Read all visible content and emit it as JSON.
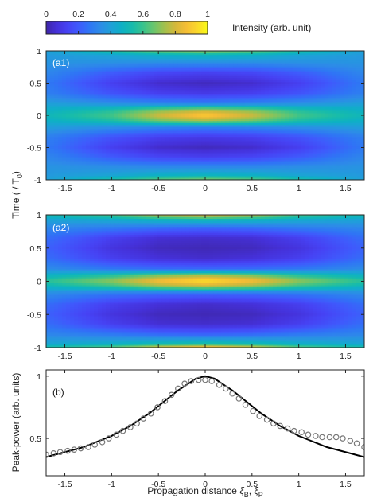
{
  "colorbar": {
    "ticks": [
      "0",
      "0.2",
      "0.4",
      "0.6",
      "0.8",
      "1"
    ],
    "label": "Intensity (arb. unit)"
  },
  "colors": {
    "cmap": [
      "#3e26a8",
      "#4531d9",
      "#4643f4",
      "#3f5afc",
      "#2f75f5",
      "#2d8be8",
      "#1fa0d8",
      "#0db0c5",
      "#16bbac",
      "#38c38d",
      "#6bc56c",
      "#a2c04d",
      "#d4b83a",
      "#f5bd35",
      "#fad62b",
      "#f9fb15"
    ],
    "line": "#000000",
    "marker": "#777777"
  },
  "heatmaps": {
    "ylabel_main": "Time  ( / T",
    "ylabel_sub": "0",
    "ylabel_tail": ")"
  },
  "chart_data": [
    {
      "type": "heatmap",
      "panel": "(a1)",
      "xlim": [
        -1.7,
        1.7
      ],
      "ylim": [
        -1,
        1
      ],
      "xticks": [
        -1.5,
        -1,
        -0.5,
        0,
        0.5,
        1,
        1.5
      ],
      "yticks": [
        -1,
        -0.5,
        0,
        0.5,
        1
      ],
      "clim": [
        0,
        1
      ],
      "rows_t": [
        1.0,
        0.94,
        0.8,
        0.65,
        0.5,
        0.34,
        0.18,
        0.08,
        0.0,
        -0.08,
        -0.18,
        -0.34,
        -0.5,
        -0.65,
        -0.8,
        -0.94,
        -1.0
      ],
      "cols_x": [
        -1.7,
        -1.0,
        -0.5,
        0.0,
        0.5,
        1.0,
        1.7
      ],
      "intensity": [
        [
          0.4,
          0.55,
          0.65,
          0.7,
          0.65,
          0.55,
          0.4
        ],
        [
          0.38,
          0.42,
          0.48,
          0.5,
          0.48,
          0.42,
          0.38
        ],
        [
          0.36,
          0.34,
          0.32,
          0.32,
          0.32,
          0.34,
          0.36
        ],
        [
          0.32,
          0.2,
          0.14,
          0.12,
          0.14,
          0.2,
          0.32
        ],
        [
          0.28,
          0.12,
          0.05,
          0.03,
          0.05,
          0.12,
          0.28
        ],
        [
          0.3,
          0.18,
          0.12,
          0.1,
          0.12,
          0.18,
          0.3
        ],
        [
          0.4,
          0.35,
          0.32,
          0.3,
          0.32,
          0.35,
          0.4
        ],
        [
          0.46,
          0.55,
          0.68,
          0.75,
          0.68,
          0.55,
          0.46
        ],
        [
          0.5,
          0.62,
          0.8,
          0.92,
          0.8,
          0.62,
          0.5
        ],
        [
          0.46,
          0.55,
          0.68,
          0.75,
          0.68,
          0.55,
          0.46
        ],
        [
          0.4,
          0.35,
          0.32,
          0.3,
          0.32,
          0.35,
          0.4
        ],
        [
          0.3,
          0.18,
          0.12,
          0.1,
          0.12,
          0.18,
          0.3
        ],
        [
          0.28,
          0.12,
          0.05,
          0.03,
          0.05,
          0.12,
          0.28
        ],
        [
          0.32,
          0.2,
          0.14,
          0.12,
          0.14,
          0.2,
          0.32
        ],
        [
          0.36,
          0.34,
          0.32,
          0.32,
          0.32,
          0.34,
          0.36
        ],
        [
          0.38,
          0.42,
          0.48,
          0.5,
          0.48,
          0.42,
          0.38
        ],
        [
          0.4,
          0.55,
          0.65,
          0.7,
          0.65,
          0.55,
          0.4
        ]
      ]
    },
    {
      "type": "heatmap",
      "panel": "(a2)",
      "xlim": [
        -1.7,
        1.7
      ],
      "ylim": [
        -1,
        1
      ],
      "xticks": [
        -1.5,
        -1,
        -0.5,
        0,
        0.5,
        1,
        1.5
      ],
      "yticks": [
        -1,
        -0.5,
        0,
        0.5,
        1
      ],
      "clim": [
        0,
        1
      ],
      "rows_t": [
        1.0,
        0.94,
        0.8,
        0.65,
        0.5,
        0.34,
        0.18,
        0.08,
        0.0,
        -0.08,
        -0.18,
        -0.34,
        -0.5,
        -0.65,
        -0.8,
        -0.94,
        -1.0
      ],
      "cols_x": [
        -1.7,
        -1.0,
        -0.5,
        0.0,
        0.5,
        1.0,
        1.7
      ],
      "intensity": [
        [
          0.55,
          0.65,
          0.82,
          0.9,
          0.82,
          0.65,
          0.55
        ],
        [
          0.42,
          0.46,
          0.52,
          0.55,
          0.52,
          0.46,
          0.42
        ],
        [
          0.32,
          0.28,
          0.24,
          0.22,
          0.24,
          0.28,
          0.32
        ],
        [
          0.25,
          0.12,
          0.06,
          0.05,
          0.06,
          0.12,
          0.25
        ],
        [
          0.22,
          0.08,
          0.03,
          0.02,
          0.03,
          0.08,
          0.22
        ],
        [
          0.25,
          0.12,
          0.07,
          0.05,
          0.07,
          0.12,
          0.25
        ],
        [
          0.34,
          0.28,
          0.25,
          0.24,
          0.25,
          0.28,
          0.34
        ],
        [
          0.48,
          0.58,
          0.7,
          0.76,
          0.7,
          0.58,
          0.48
        ],
        [
          0.58,
          0.72,
          0.88,
          0.97,
          0.88,
          0.72,
          0.58
        ],
        [
          0.48,
          0.58,
          0.7,
          0.76,
          0.7,
          0.58,
          0.48
        ],
        [
          0.34,
          0.28,
          0.25,
          0.24,
          0.25,
          0.28,
          0.34
        ],
        [
          0.25,
          0.12,
          0.07,
          0.05,
          0.07,
          0.12,
          0.25
        ],
        [
          0.22,
          0.08,
          0.03,
          0.02,
          0.03,
          0.08,
          0.22
        ],
        [
          0.25,
          0.12,
          0.06,
          0.05,
          0.06,
          0.12,
          0.25
        ],
        [
          0.32,
          0.28,
          0.24,
          0.22,
          0.24,
          0.28,
          0.32
        ],
        [
          0.42,
          0.46,
          0.52,
          0.55,
          0.52,
          0.46,
          0.42
        ],
        [
          0.55,
          0.65,
          0.82,
          0.9,
          0.82,
          0.65,
          0.55
        ]
      ]
    },
    {
      "type": "line",
      "panel": "(b)",
      "xlabel_main": "Propagation distance ",
      "xlabel_sym1": "ξ",
      "xlabel_sub1": "B",
      "xlabel_sep": ", ",
      "xlabel_sym2": "ξ",
      "xlabel_sub2": "P",
      "ylabel": "Peak-power (arb. units)",
      "xlim": [
        -1.7,
        1.7
      ],
      "ylim": [
        0.2,
        1.05
      ],
      "xticks": [
        -1.5,
        -1,
        -0.5,
        0,
        0.5,
        1,
        1.5
      ],
      "yticks": [
        0.5,
        1
      ],
      "series": [
        {
          "kind": "line",
          "x": [
            -1.7,
            -1.6,
            -1.5,
            -1.4,
            -1.3,
            -1.2,
            -1.1,
            -1.0,
            -0.9,
            -0.8,
            -0.7,
            -0.6,
            -0.5,
            -0.4,
            -0.3,
            -0.2,
            -0.1,
            0.0,
            0.1,
            0.2,
            0.3,
            0.4,
            0.5,
            0.6,
            0.7,
            0.8,
            0.9,
            1.0,
            1.1,
            1.2,
            1.3,
            1.4,
            1.5,
            1.6,
            1.7
          ],
          "y": [
            0.35,
            0.37,
            0.39,
            0.41,
            0.43,
            0.46,
            0.49,
            0.52,
            0.56,
            0.6,
            0.65,
            0.7,
            0.76,
            0.82,
            0.88,
            0.93,
            0.98,
            1.0,
            0.98,
            0.93,
            0.88,
            0.82,
            0.76,
            0.7,
            0.65,
            0.6,
            0.56,
            0.52,
            0.49,
            0.46,
            0.43,
            0.41,
            0.39,
            0.37,
            0.35
          ]
        },
        {
          "kind": "markers",
          "x": [
            -1.7,
            -1.62,
            -1.55,
            -1.47,
            -1.4,
            -1.33,
            -1.25,
            -1.18,
            -1.1,
            -1.03,
            -0.95,
            -0.88,
            -0.8,
            -0.73,
            -0.66,
            -0.58,
            -0.51,
            -0.43,
            -0.36,
            -0.29,
            -0.22,
            -0.15,
            -0.07,
            0.0,
            0.07,
            0.15,
            0.22,
            0.29,
            0.36,
            0.43,
            0.51,
            0.58,
            0.66,
            0.73,
            0.8,
            0.88,
            0.95,
            1.03,
            1.1,
            1.18,
            1.25,
            1.33,
            1.4,
            1.47,
            1.55,
            1.62,
            1.7
          ],
          "y": [
            0.37,
            0.38,
            0.39,
            0.4,
            0.41,
            0.42,
            0.43,
            0.45,
            0.47,
            0.5,
            0.53,
            0.56,
            0.59,
            0.62,
            0.66,
            0.7,
            0.75,
            0.8,
            0.85,
            0.9,
            0.94,
            0.96,
            0.97,
            0.97,
            0.96,
            0.93,
            0.9,
            0.86,
            0.82,
            0.77,
            0.72,
            0.68,
            0.65,
            0.62,
            0.6,
            0.58,
            0.56,
            0.55,
            0.53,
            0.52,
            0.51,
            0.51,
            0.51,
            0.5,
            0.48,
            0.46,
            0.43
          ]
        }
      ]
    }
  ]
}
